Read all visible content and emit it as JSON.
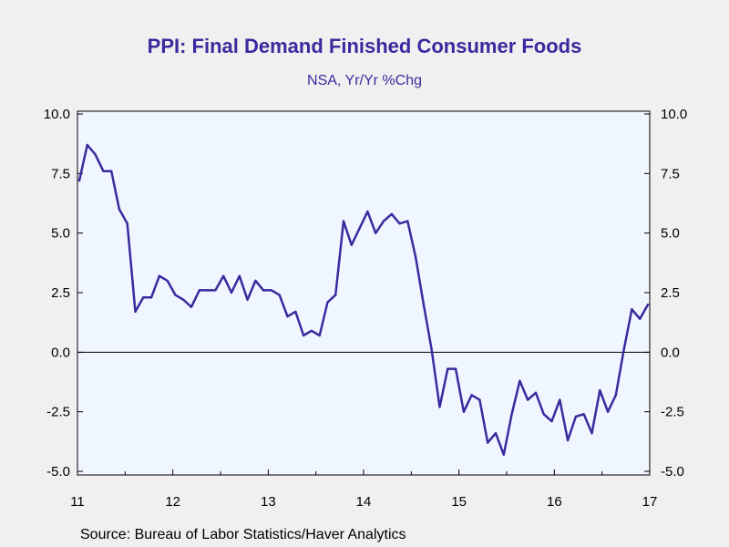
{
  "title": "PPI: Final Demand Finished Consumer Foods",
  "subtitle": "NSA, Yr/Yr %Chg",
  "source": "Source:  Bureau of Labor Statistics/Haver Analytics",
  "colors": {
    "line": "#3a2a9e",
    "plot_bg": "#f0f6ff",
    "text": "#3a2a9e"
  },
  "chart_data": {
    "type": "line",
    "title": "PPI: Final Demand Finished Consumer Foods",
    "subtitle": "NSA, Yr/Yr %Chg",
    "ylim": [
      -5.0,
      10.0
    ],
    "yticks": [
      "10.0",
      "7.5",
      "5.0",
      "2.5",
      "0.0",
      "-2.5",
      "-5.0"
    ],
    "ytick_values": [
      10.0,
      7.5,
      5.0,
      2.5,
      0.0,
      -2.5,
      -5.0
    ],
    "xticks": [
      "11",
      "12",
      "13",
      "14",
      "15",
      "16",
      "17"
    ],
    "x_start": "2011-01",
    "x_end": "2017-01",
    "zero_line": true,
    "series": [
      {
        "values": [
          7.2,
          8.7,
          8.3,
          7.6,
          7.6,
          6.0,
          5.4,
          1.7,
          2.3,
          2.3,
          3.2,
          3.0,
          2.4,
          2.2,
          1.9,
          2.6,
          2.6,
          2.6,
          3.2,
          2.5,
          3.2,
          2.2,
          3.0,
          2.6,
          2.6,
          2.4,
          1.5,
          1.7,
          0.7,
          0.9,
          0.7,
          2.1,
          2.4,
          5.5,
          4.5,
          5.2,
          5.9,
          5.0,
          5.5,
          5.8,
          5.4,
          5.5,
          4.0,
          2.0,
          0.1,
          -2.3,
          -0.7,
          -0.7,
          -2.5,
          -1.8,
          -2.0,
          -3.8,
          -3.4,
          -4.3,
          -2.6,
          -1.2,
          -2.0,
          -1.7,
          -2.6,
          -2.9,
          -2.0,
          -3.7,
          -2.7,
          -2.6,
          -3.4,
          -1.6,
          -2.5,
          -1.8,
          0.1,
          1.8,
          1.4,
          2.0
        ]
      }
    ]
  }
}
